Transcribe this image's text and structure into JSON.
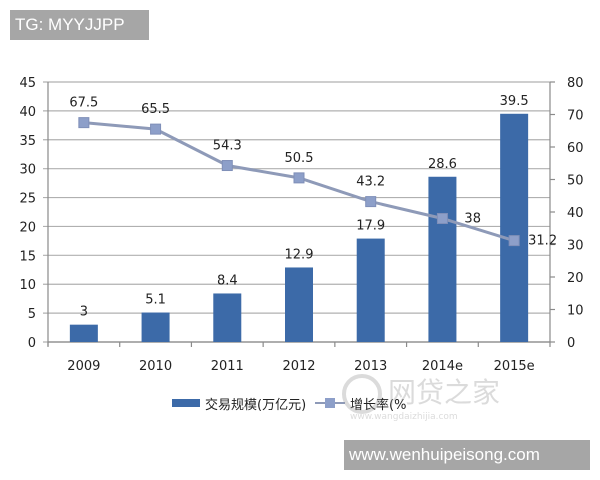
{
  "overlay": {
    "top_left_tag": "TG: MYYJJPP",
    "bottom_right_url": "www.wenhuipeisong.com",
    "watermark_text": "网贷之家",
    "watermark_subtext": "www.wangdaizhijia.com"
  },
  "colors": {
    "bar": "#3c6aa8",
    "line": "#8e9ab8",
    "marker": "#8d9fc9",
    "grid": "#b0b0b0",
    "axis": "#8a8a8a",
    "text": "#222222"
  },
  "chart_data": {
    "type": "bar+line",
    "title": "",
    "categories": [
      "2009",
      "2010",
      "2011",
      "2012",
      "2013",
      "2014e",
      "2015e"
    ],
    "series": [
      {
        "name": "交易规模(万亿元)",
        "type": "bar",
        "axis": "left",
        "values": [
          3,
          5.1,
          8.4,
          12.9,
          17.9,
          28.6,
          39.5
        ],
        "labels": [
          "3",
          "5.1",
          "8.4",
          "12.9",
          "17.9",
          "28.6",
          "39.5"
        ]
      },
      {
        "name": "增长率(%",
        "type": "line",
        "axis": "right",
        "values": [
          67.5,
          65.5,
          54.3,
          50.5,
          43.2,
          38,
          31.2
        ],
        "labels": [
          "67.5",
          "65.5",
          "54.3",
          "50.5",
          "43.2",
          "38",
          "31.2"
        ]
      }
    ],
    "left_axis": {
      "min": 0,
      "max": 45,
      "step": 5,
      "ticks": [
        "0",
        "5",
        "10",
        "15",
        "20",
        "25",
        "30",
        "35",
        "40",
        "45"
      ]
    },
    "right_axis": {
      "min": 0,
      "max": 80,
      "step": 10,
      "ticks": [
        "0",
        "10",
        "20",
        "30",
        "40",
        "50",
        "60",
        "70",
        "80"
      ]
    },
    "xlabel": "",
    "ylabel": "",
    "grid": true,
    "legend": {
      "position": "bottom",
      "entries": [
        "交易规模(万亿元)",
        "增长率(%"
      ]
    }
  }
}
